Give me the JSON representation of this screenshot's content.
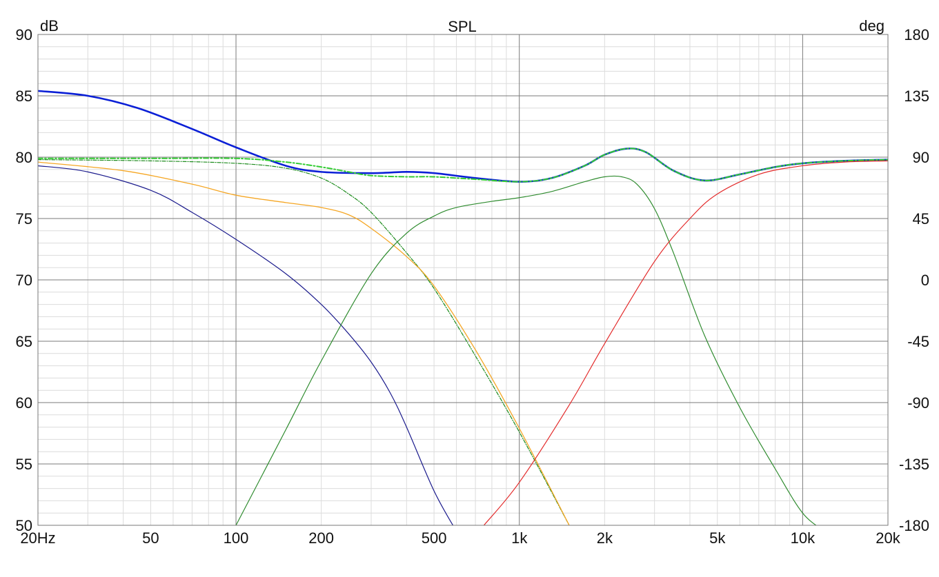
{
  "chart_data": {
    "type": "line",
    "title": "SPL",
    "ylabel": "dB",
    "y2label": "deg",
    "x_scale": "log",
    "xlim": [
      20,
      20000
    ],
    "ylim": [
      50,
      90
    ],
    "y2lim": [
      -180,
      180
    ],
    "x_ticks": [
      20,
      50,
      100,
      200,
      500,
      1000,
      2000,
      5000,
      10000,
      20000
    ],
    "x_tick_labels": [
      "20Hz",
      "50",
      "100",
      "200",
      "500",
      "1k",
      "2k",
      "5k",
      "10k",
      "20k"
    ],
    "y_ticks": [
      90,
      85,
      80,
      75,
      70,
      65,
      60,
      55,
      50
    ],
    "y_tick_labels": [
      "90",
      "85",
      "80",
      "75",
      "70",
      "65",
      "60",
      "55",
      "50"
    ],
    "y2_ticks": [
      180,
      135,
      90,
      45,
      0,
      -45,
      -90,
      -135,
      -180
    ],
    "y2_tick_labels": [
      "180",
      "135",
      "90",
      "45",
      "0",
      "-45",
      "-90",
      "-135",
      "-180"
    ],
    "grid": true,
    "series": [
      {
        "color": "#0a1fd6",
        "width": 2.6,
        "dash": "",
        "x": [
          20,
          30,
          45,
          70,
          100,
          150,
          200,
          300,
          400,
          500,
          700,
          1000,
          1300,
          1700,
          2000,
          2400,
          2800,
          3500,
          4500,
          6000,
          8000,
          10000,
          14000,
          20000
        ],
        "y": [
          85.4,
          85.0,
          84.0,
          82.3,
          80.8,
          79.3,
          78.8,
          78.7,
          78.8,
          78.7,
          78.3,
          78.0,
          78.3,
          79.3,
          80.2,
          80.7,
          80.4,
          78.9,
          78.1,
          78.6,
          79.2,
          79.5,
          79.7,
          79.8
        ]
      },
      {
        "color": "#33cc33",
        "width": 2,
        "dash": "7,3,2,3",
        "x": [
          20,
          50,
          100,
          150,
          200,
          250,
          300,
          400,
          500,
          700,
          1000,
          1300,
          1700,
          2000,
          2400,
          2800,
          3500,
          4500,
          6000,
          8000,
          10000,
          14000,
          20000
        ],
        "y": [
          79.9,
          79.9,
          79.9,
          79.6,
          79.2,
          78.8,
          78.5,
          78.4,
          78.4,
          78.2,
          78.0,
          78.3,
          79.3,
          80.2,
          80.7,
          80.4,
          78.9,
          78.1,
          78.6,
          79.2,
          79.5,
          79.7,
          79.8
        ]
      },
      {
        "color": "#1a8a1a",
        "width": 1.2,
        "dash": "5,2,1,2",
        "x": [
          20,
          50,
          100,
          150,
          200,
          250,
          300,
          400,
          500,
          700,
          1000,
          1500
        ],
        "y": [
          79.8,
          79.7,
          79.5,
          79.1,
          78.3,
          77.0,
          75.5,
          72.2,
          69.3,
          63.8,
          57.6,
          50.0
        ]
      },
      {
        "color": "#f5a623",
        "width": 1.3,
        "dash": "",
        "x": [
          20,
          40,
          70,
          100,
          150,
          200,
          250,
          300,
          400,
          500,
          700,
          1000,
          1500
        ],
        "y": [
          79.6,
          78.9,
          77.8,
          76.9,
          76.3,
          75.9,
          75.3,
          74.2,
          71.9,
          69.5,
          64.3,
          57.9,
          50.0
        ]
      },
      {
        "color": "#1a1a8c",
        "width": 1.2,
        "dash": "",
        "x": [
          20,
          30,
          50,
          70,
          100,
          150,
          200,
          250,
          300,
          350,
          400,
          500,
          600
        ],
        "y": [
          79.3,
          78.8,
          77.3,
          75.5,
          73.3,
          70.5,
          68.0,
          65.6,
          63.3,
          60.8,
          58.0,
          52.8,
          49.5
        ]
      },
      {
        "color": "#2e8b2e",
        "width": 1.2,
        "dash": "",
        "x": [
          100,
          150,
          200,
          300,
          400,
          500,
          600,
          800,
          1000,
          1300,
          1700,
          2000,
          2300,
          2600,
          3000,
          3500,
          4500,
          6000,
          8000,
          10000,
          12000
        ],
        "y": [
          50.0,
          57.8,
          63.4,
          70.5,
          73.8,
          75.2,
          75.9,
          76.4,
          76.7,
          77.2,
          78.0,
          78.4,
          78.4,
          77.8,
          75.8,
          72.2,
          65.5,
          59.6,
          54.6,
          51.0,
          49.5
        ]
      },
      {
        "color": "#e32a2a",
        "width": 1.2,
        "dash": "",
        "x": [
          750,
          1000,
          1500,
          2000,
          3000,
          4000,
          5000,
          7000,
          10000,
          14000,
          20000
        ],
        "y": [
          50.0,
          53.5,
          59.8,
          64.8,
          71.5,
          75.0,
          77.0,
          78.6,
          79.3,
          79.6,
          79.7
        ]
      }
    ]
  }
}
